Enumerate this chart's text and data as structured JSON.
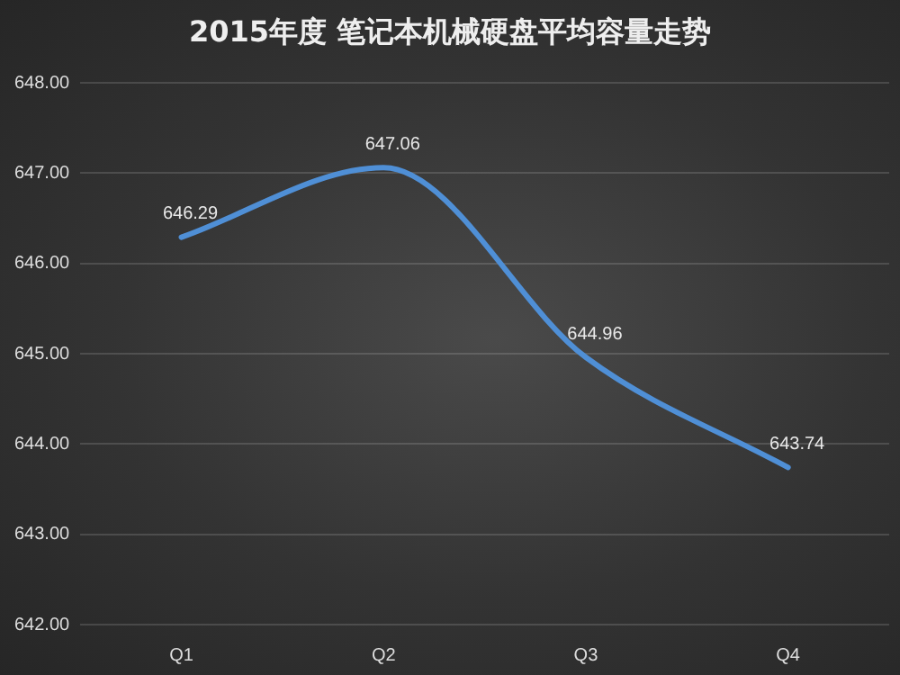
{
  "chart_data": {
    "type": "line",
    "title": "2015年度 笔记本机械硬盘平均容量走势",
    "categories": [
      "Q1",
      "Q2",
      "Q3",
      "Q4"
    ],
    "series": [
      {
        "color": "#4f8fd6",
        "values": [
          646.29,
          647.06,
          644.96,
          643.74
        ]
      }
    ],
    "ylim": [
      642,
      648
    ],
    "yticks": [
      {
        "value": 642,
        "label": "642.00"
      },
      {
        "value": 643,
        "label": "643.00"
      },
      {
        "value": 644,
        "label": "644.00"
      },
      {
        "value": 645,
        "label": "645.00"
      },
      {
        "value": 646,
        "label": "646.00"
      },
      {
        "value": 647,
        "label": "647.00"
      },
      {
        "value": 648,
        "label": "648.00"
      }
    ],
    "grid": "y",
    "legend": false,
    "marker": "none",
    "line_style": "solid",
    "data_labels": true
  }
}
